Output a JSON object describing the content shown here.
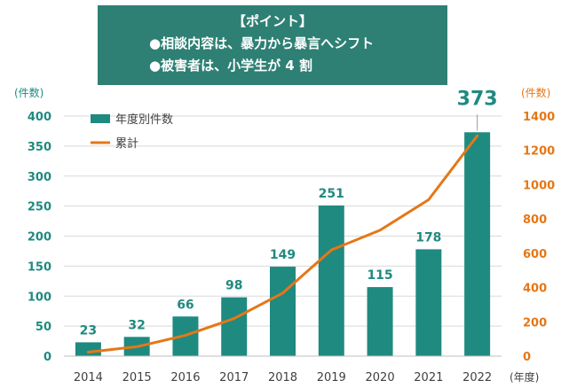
{
  "callout": {
    "heading": "【ポイント】",
    "point1": "●相談内容は、暴力から暴言へシフト",
    "point2": "●被害者は、小学生が 4 割"
  },
  "colors": {
    "bar": "#1f8a80",
    "line": "#e57717",
    "left_axis_text": "#1f8a80",
    "right_axis_text": "#e57717",
    "callout_bg": "#2e8074",
    "grid": "#d9d9d9"
  },
  "chart_data": {
    "type": "bar",
    "categories": [
      "2014",
      "2015",
      "2016",
      "2017",
      "2018",
      "2019",
      "2020",
      "2021",
      "2022"
    ],
    "x_unit_label": "(年度)",
    "series": [
      {
        "name": "年度別件数",
        "type": "bar",
        "axis": "left",
        "values": [
          23,
          32,
          66,
          98,
          149,
          251,
          115,
          178,
          373
        ]
      },
      {
        "name": "累計",
        "type": "line",
        "axis": "right",
        "values": [
          23,
          55,
          121,
          219,
          368,
          619,
          734,
          912,
          1285
        ]
      }
    ],
    "data_labels": [
      "23",
      "32",
      "66",
      "98",
      "149",
      "251",
      "115",
      "178",
      "373"
    ],
    "left_axis": {
      "unit_label": "(件数)",
      "range": [
        0,
        400
      ],
      "ticks": [
        "0",
        "50",
        "100",
        "150",
        "200",
        "250",
        "300",
        "350",
        "400"
      ]
    },
    "right_axis": {
      "unit_label": "(件数)",
      "range": [
        0,
        1400
      ],
      "ticks": [
        "0",
        "200",
        "400",
        "600",
        "800",
        "1000",
        "1200",
        "1400"
      ]
    },
    "legend_position": "top-left",
    "grid": true
  }
}
